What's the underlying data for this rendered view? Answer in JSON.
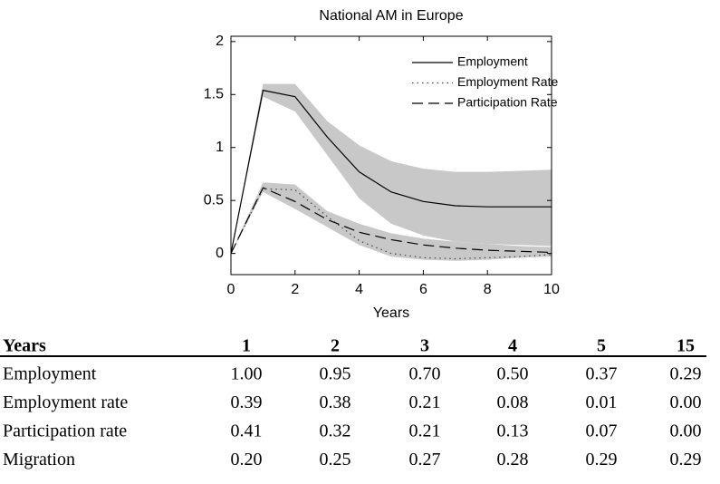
{
  "chart_data": {
    "type": "line",
    "title": "National AM in Europe",
    "x_label": "Years",
    "x": [
      0,
      1,
      2,
      3,
      4,
      5,
      6,
      7,
      8,
      9,
      10
    ],
    "xlim": [
      0,
      10
    ],
    "xticks": [
      0,
      2,
      4,
      6,
      8,
      10
    ],
    "ylim": [
      -0.2,
      2.05
    ],
    "yticks": [
      0,
      0.5,
      1,
      1.5,
      2
    ],
    "legend": "upper right",
    "series": [
      {
        "name": "Employment",
        "color": "#000000",
        "dash": "solid",
        "values": [
          0,
          1.54,
          1.48,
          1.1,
          0.77,
          0.58,
          0.49,
          0.45,
          0.44,
          0.44,
          0.44
        ]
      },
      {
        "name": "Employment Rate",
        "color": "#444444",
        "dash": "dotted",
        "values": [
          0,
          0.61,
          0.6,
          0.35,
          0.12,
          0.0,
          -0.04,
          -0.05,
          -0.04,
          -0.03,
          -0.01
        ]
      },
      {
        "name": "Participation Rate",
        "color": "#000000",
        "dash": "dashed",
        "values": [
          0,
          0.62,
          0.49,
          0.32,
          0.2,
          0.13,
          0.08,
          0.05,
          0.03,
          0.02,
          0.01
        ]
      }
    ],
    "bands": [
      {
        "color": "#c8c8c8",
        "upper": [
          0,
          1.6,
          1.6,
          1.25,
          1.02,
          0.87,
          0.8,
          0.77,
          0.77,
          0.78,
          0.79
        ],
        "lower": [
          0,
          1.48,
          1.34,
          0.93,
          0.52,
          0.28,
          0.17,
          0.11,
          0.09,
          0.08,
          0.07
        ]
      },
      {
        "color": "#c8c8c8",
        "upper": [
          0,
          0.67,
          0.65,
          0.4,
          0.28,
          0.19,
          0.14,
          0.11,
          0.09,
          0.07,
          0.06
        ],
        "lower": [
          0,
          0.58,
          0.42,
          0.25,
          0.08,
          -0.03,
          -0.06,
          -0.07,
          -0.06,
          -0.04,
          -0.03
        ]
      }
    ]
  },
  "table": {
    "header": [
      "Years",
      "1",
      "2",
      "3",
      "4",
      "5",
      "15"
    ],
    "rows": [
      [
        "Employment",
        "1.00",
        "0.95",
        "0.70",
        "0.50",
        "0.37",
        "0.29"
      ],
      [
        "Employment rate",
        "0.39",
        "0.38",
        "0.21",
        "0.08",
        "0.01",
        "0.00"
      ],
      [
        "Participation rate",
        "0.41",
        "0.32",
        "0.21",
        "0.13",
        "0.07",
        "0.00"
      ],
      [
        "Migration",
        "0.20",
        "0.25",
        "0.27",
        "0.28",
        "0.29",
        "0.29"
      ]
    ]
  }
}
